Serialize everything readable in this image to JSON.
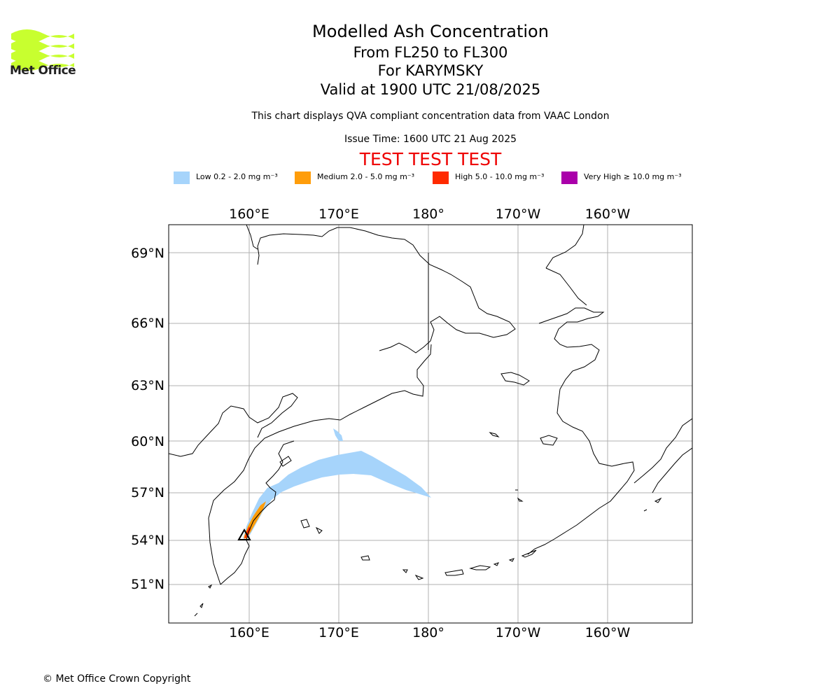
{
  "logo": {
    "text": "Met Office",
    "color": "#c8ff2f"
  },
  "titles": {
    "main": "Modelled Ash Concentration",
    "levels": "From FL250 to FL300",
    "volcano": "For KARYMSKY",
    "valid": "Valid at 1900 UTC 21/08/2025",
    "description": "This chart displays QVA compliant concentration data from VAAC London",
    "issue": "Issue Time: 1600 UTC 21 Aug 2025",
    "test": "TEST TEST TEST"
  },
  "legend": [
    {
      "label": "Low 0.2 - 2.0 mg m⁻³",
      "color": "#a6d4fb"
    },
    {
      "label": "Medium 2.0 - 5.0 mg m⁻³",
      "color": "#ff9d0a"
    },
    {
      "label": "High 5.0 - 10.0 mg m⁻³",
      "color": "#ff2a00"
    },
    {
      "label": "Very High ≥ 10.0 mg m⁻³",
      "color": "#aa00aa"
    }
  ],
  "axes": {
    "top_lon_labels": [
      "160°E",
      "170°E",
      "180°",
      "170°W",
      "160°W"
    ],
    "bottom_lon_labels": [
      "160°E",
      "170°E",
      "180°",
      "170°W",
      "160°W"
    ],
    "lat_labels": [
      "69°N",
      "66°N",
      "63°N",
      "60°N",
      "57°N",
      "54°N",
      "51°N"
    ]
  },
  "map": {
    "volcano_marker": "black triangle at Karymsky volcano",
    "gridlines": true
  },
  "copyright": "© Met Office Crown Copyright"
}
